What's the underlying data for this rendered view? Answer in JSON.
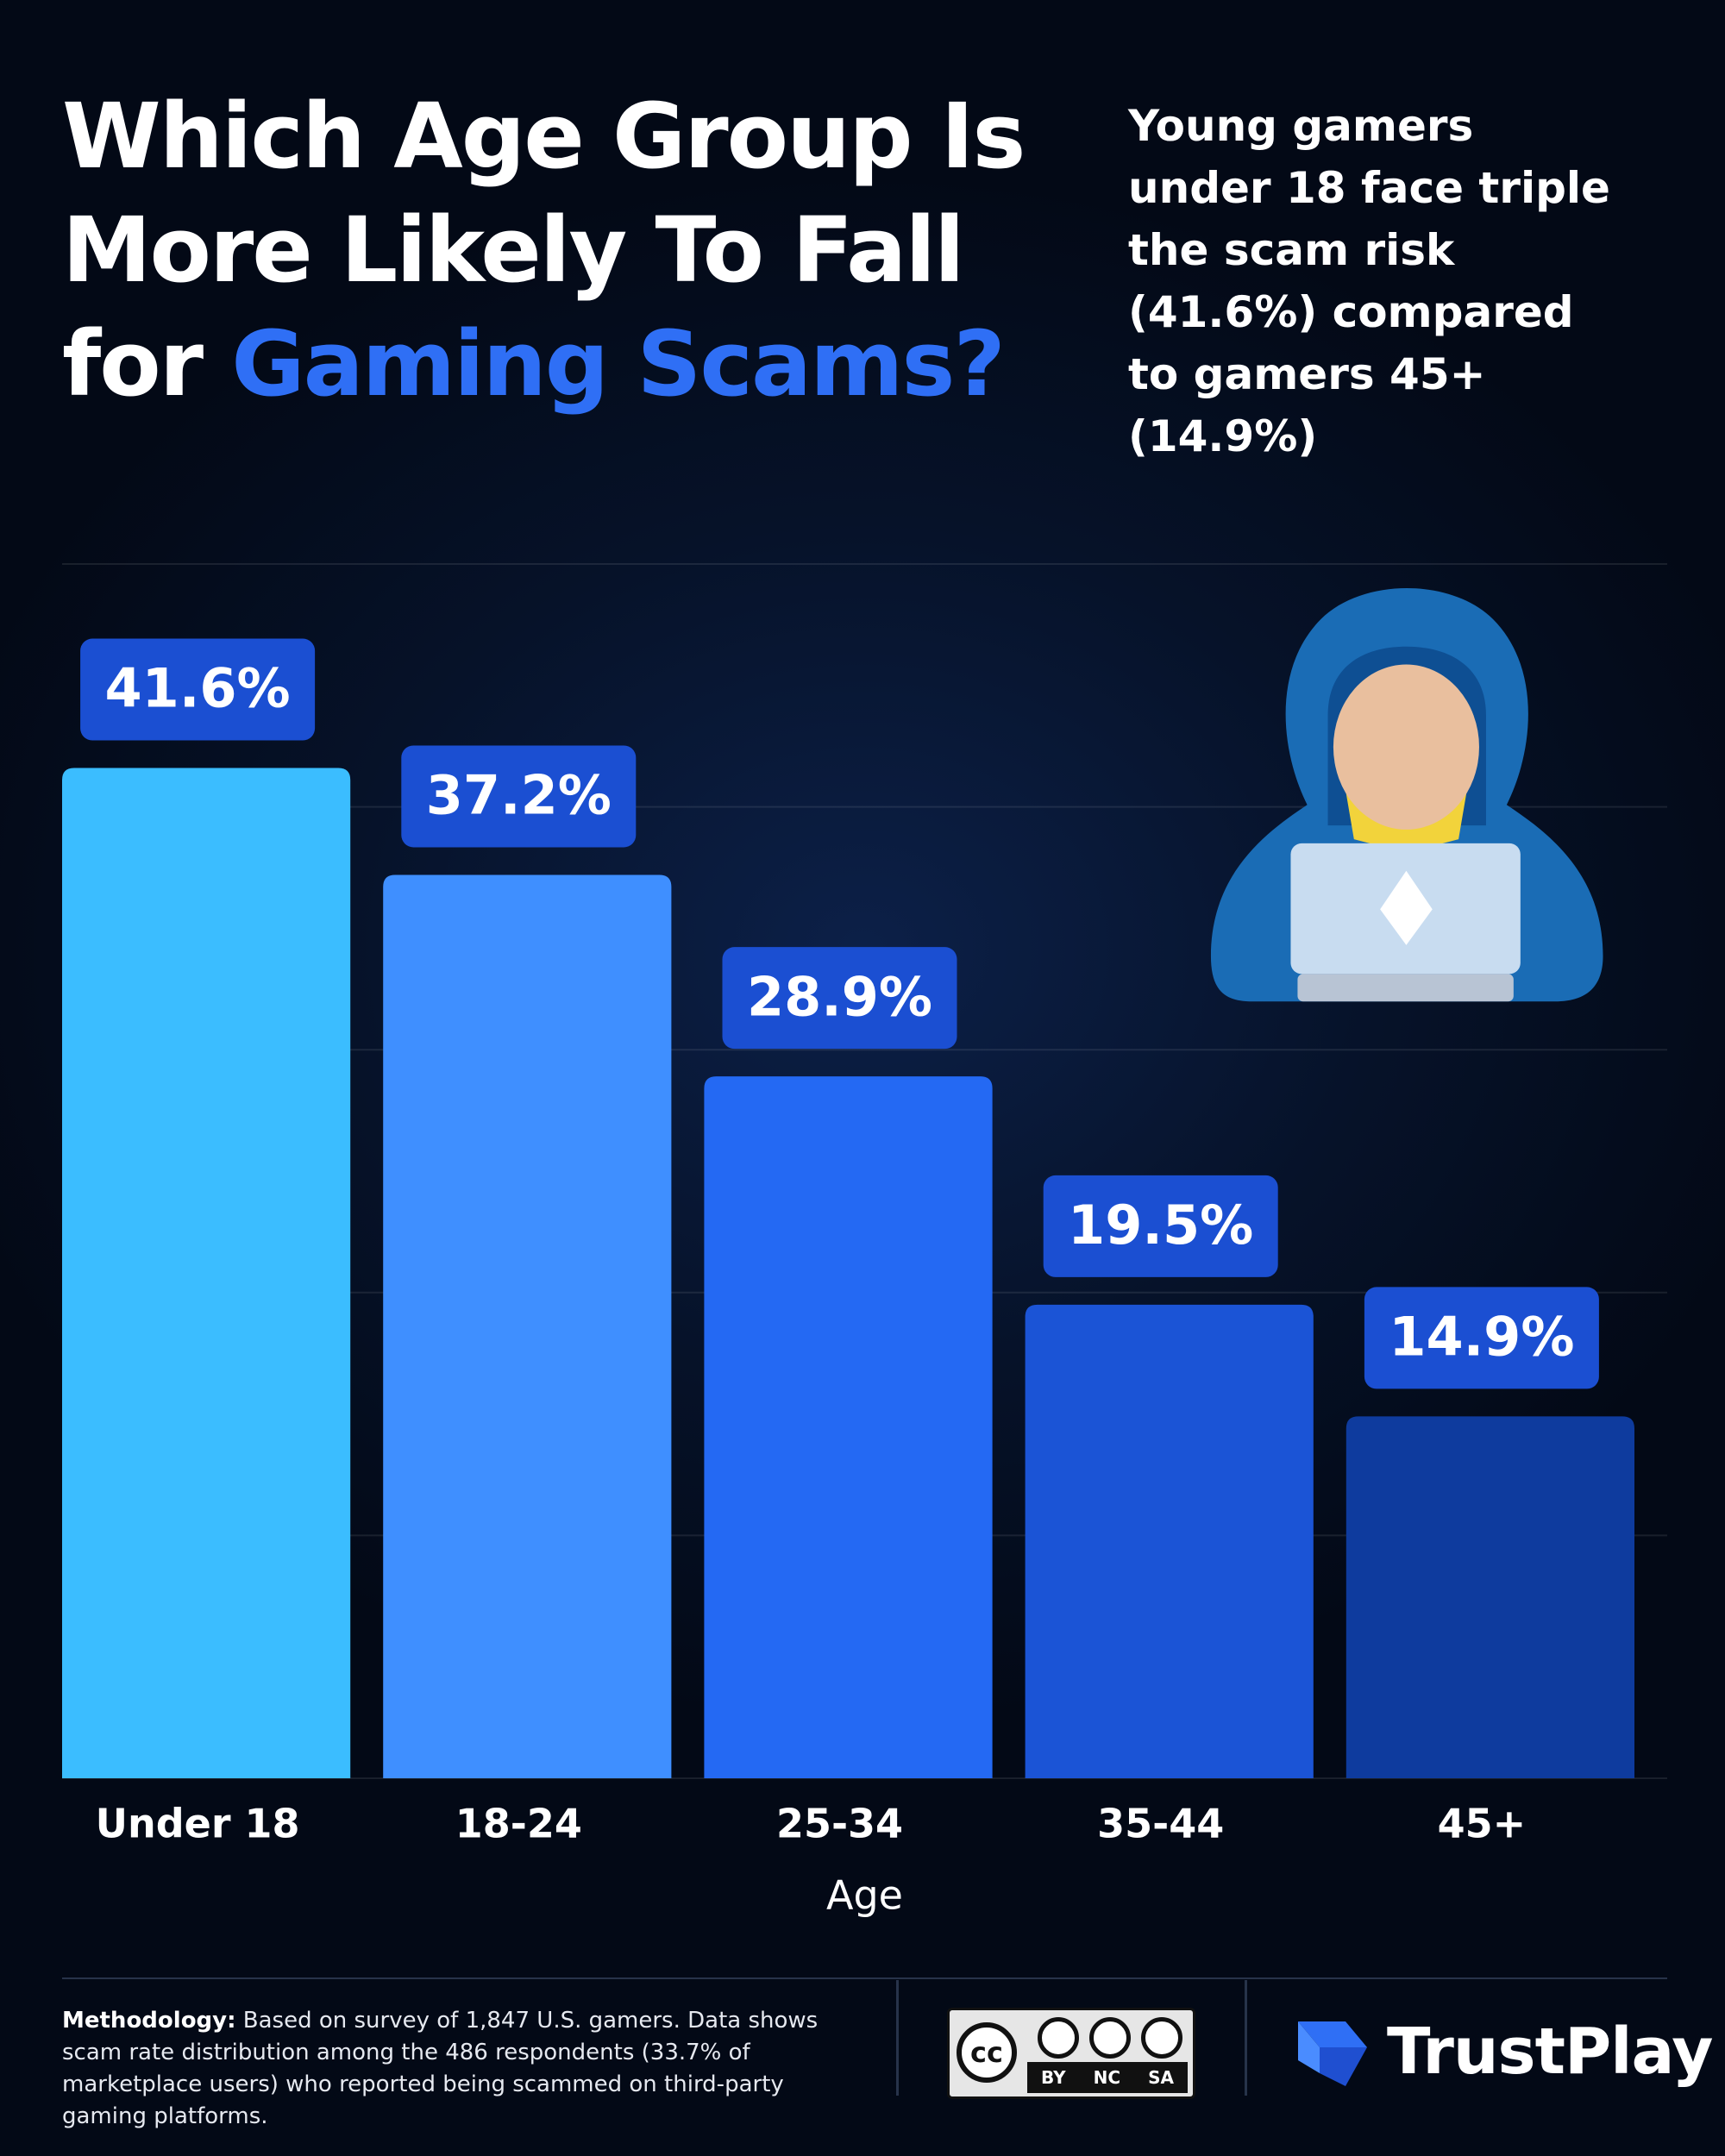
{
  "chart_data": {
    "type": "bar",
    "title_lines": [
      "Which Age Group Is",
      "More Likely To Fall",
      "for"
    ],
    "title_highlight": "Gaming Scams?",
    "annotation": "Young gamers under 18 face triple the scam risk (41.6%) compared to gamers 45+ (14.9%)",
    "categories": [
      "Under 18",
      "18-24",
      "25-34",
      "35-44",
      "45+"
    ],
    "values": [
      41.6,
      37.2,
      28.9,
      19.5,
      14.9
    ],
    "value_labels": [
      "41.6%",
      "37.2%",
      "28.9%",
      "19.5%",
      "14.9%"
    ],
    "colors": [
      "#3bbdff",
      "#3f8fff",
      "#2469f3",
      "#1b54d6",
      "#0e3b9e"
    ],
    "x_label": "Age",
    "ylim": [
      0,
      50
    ],
    "yticks": [
      0,
      10,
      20,
      30,
      40,
      50
    ],
    "grid": true
  },
  "footer": {
    "methodology_label": "Methodology:",
    "methodology_text": "Based on survey of 1,847 U.S. gamers. Data shows scam rate distribution among the 486 respondents (33.7% of marketplace users) who reported being scammed on third-party gaming platforms.",
    "license_cc": "cc",
    "license_terms": [
      "BY",
      "NC",
      "SA"
    ],
    "brand": "TrustPlay"
  }
}
